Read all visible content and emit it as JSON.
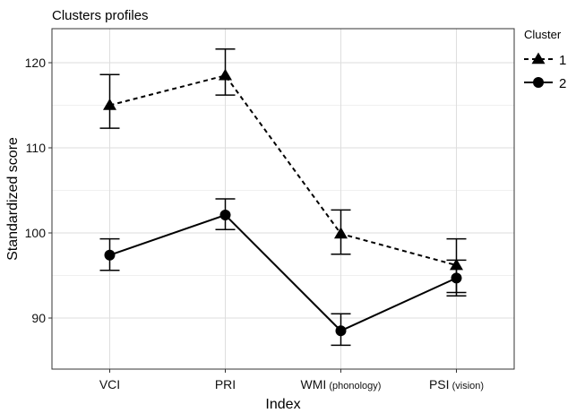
{
  "chart_data": {
    "type": "line",
    "title": "Clusters profiles",
    "xlabel": "Index",
    "ylabel": "Standardized score",
    "categories": [
      {
        "main": "VCI",
        "sub": ""
      },
      {
        "main": "PRI",
        "sub": ""
      },
      {
        "main": "WMI",
        "sub": "(phonology)"
      },
      {
        "main": "PSI",
        "sub": "(vision)"
      }
    ],
    "ylim": [
      84,
      124
    ],
    "yticks": [
      90,
      100,
      110,
      120
    ],
    "grid": true,
    "legend": {
      "title": "Cluster",
      "placement": "right"
    },
    "series": [
      {
        "name": "1",
        "marker": "triangle",
        "line": "dashed",
        "values": [
          115.0,
          118.5,
          99.9,
          96.2
        ],
        "error_low": [
          112.3,
          116.2,
          97.5,
          93.0
        ],
        "error_high": [
          118.6,
          121.6,
          102.7,
          99.3
        ]
      },
      {
        "name": "2",
        "marker": "circle",
        "line": "solid",
        "values": [
          97.4,
          102.1,
          88.5,
          94.7
        ],
        "error_low": [
          95.6,
          100.4,
          86.8,
          92.6
        ],
        "error_high": [
          99.3,
          104.0,
          90.5,
          96.8
        ]
      }
    ]
  }
}
